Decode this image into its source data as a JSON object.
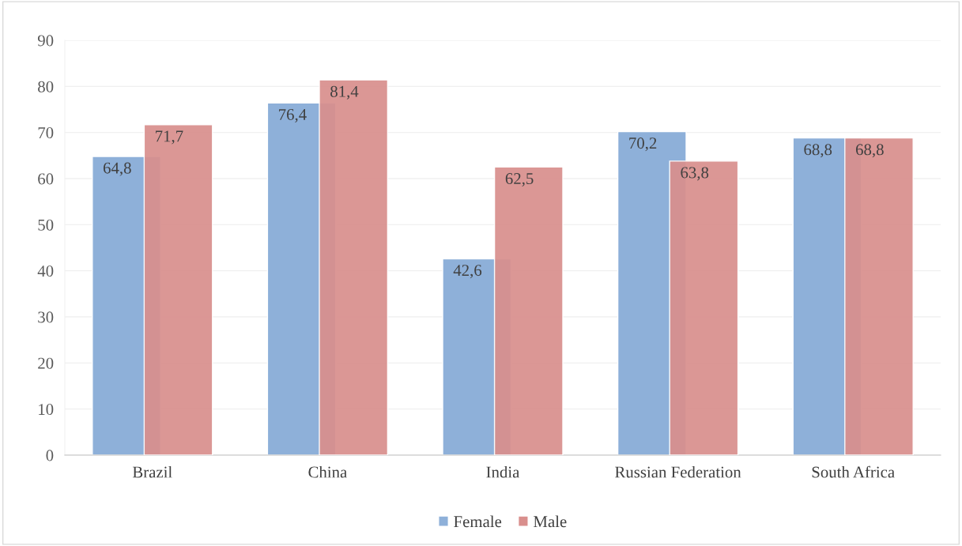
{
  "chart_data": {
    "type": "bar",
    "categories": [
      "Brazil",
      "China",
      "India",
      "Russian Federation",
      "South Africa"
    ],
    "series": [
      {
        "name": "Female",
        "color": "#8eb0d9",
        "values": [
          64.8,
          76.4,
          42.6,
          70.2,
          68.8
        ],
        "value_labels": [
          "64,8",
          "76,4",
          "42,6",
          "70,2",
          "68,8"
        ]
      },
      {
        "name": "Male",
        "color": "#d98f8d",
        "values": [
          71.7,
          81.4,
          62.5,
          63.8,
          68.8
        ],
        "value_labels": [
          "71,7",
          "81,4",
          "62,5",
          "63,8",
          "68,8"
        ]
      }
    ],
    "ylim": [
      0,
      90
    ],
    "yticks": [
      0,
      10,
      20,
      30,
      40,
      50,
      60,
      70,
      80,
      90
    ],
    "grid": "y",
    "legend": "bottom"
  }
}
